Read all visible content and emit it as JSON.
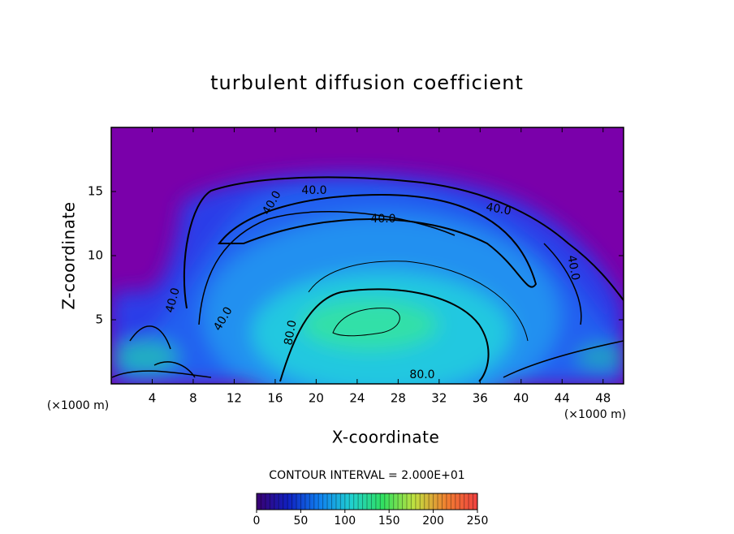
{
  "chart_data": {
    "type": "contour",
    "title": "turbulent diffusion coefficient",
    "xlabel": "X-coordinate",
    "ylabel": "Z-coordinate",
    "xunit": "(×1000 m)",
    "yunit": "(×1000 m)",
    "xlim": [
      0,
      50
    ],
    "xticks": [
      4,
      8,
      12,
      16,
      20,
      24,
      28,
      32,
      36,
      40,
      44,
      48
    ],
    "ylim": [
      0,
      20
    ],
    "yticks": [
      5,
      10,
      15
    ],
    "contour_labels": [
      "40.0",
      "80.0"
    ],
    "contour_interval_text": "CONTOUR INTERVAL = 2.000E+01",
    "colorbar": {
      "clim": [
        0,
        250
      ],
      "ticks": [
        0,
        50,
        100,
        150,
        200,
        250
      ],
      "colors": [
        "#3a0070",
        "#1020c0",
        "#1080f0",
        "#20d0d0",
        "#30e060",
        "#c0e040",
        "#f08030",
        "#f04040"
      ]
    }
  }
}
